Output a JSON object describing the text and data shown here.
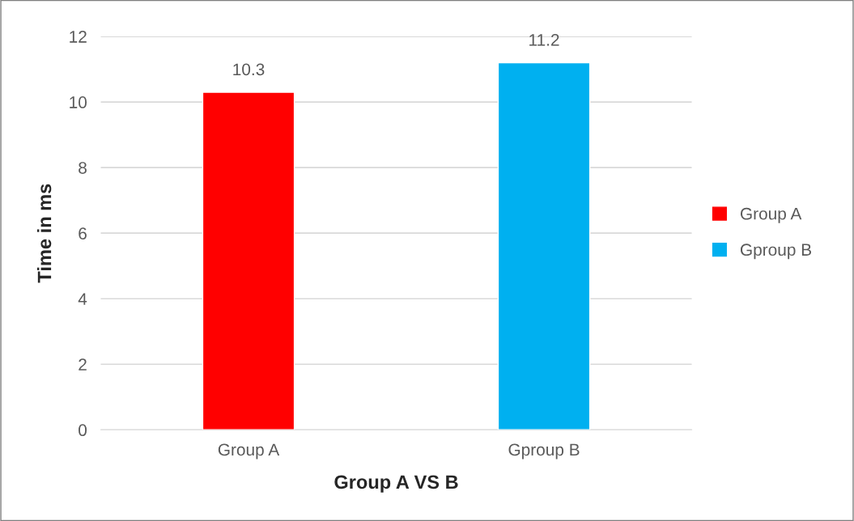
{
  "chart_data": {
    "type": "bar",
    "xlabel": "Group A VS B",
    "ylabel": "Time in ms",
    "categories": [
      "Group A",
      "Gproup B"
    ],
    "series": [
      {
        "name": "Group A",
        "color": "#ff0000",
        "values": [
          10.3,
          null
        ]
      },
      {
        "name": "Gproup B",
        "color": "#00b0f0",
        "values": [
          null,
          11.2
        ]
      }
    ],
    "ylim": [
      0,
      12
    ],
    "yticks": [
      0,
      2,
      4,
      6,
      8,
      10,
      12
    ],
    "grid": "y",
    "legend": "right",
    "data_labels": true
  }
}
